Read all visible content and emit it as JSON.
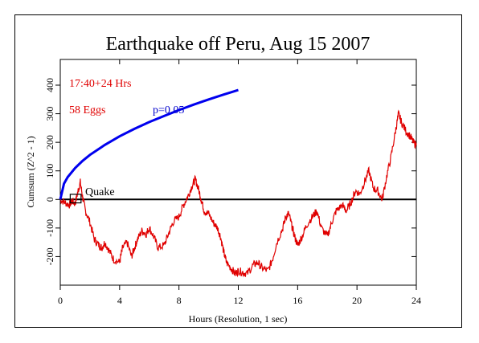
{
  "chart_data": {
    "type": "line",
    "title": "Earthquake off Peru, Aug 15 2007",
    "xlabel": "Hours (Resolution, 1 sec)",
    "ylabel": "Cumsum (Z^2 - 1)",
    "xlim": [
      0,
      24
    ],
    "ylim": [
      -300,
      490
    ],
    "x_ticks": [
      0,
      4,
      8,
      12,
      16,
      20,
      24
    ],
    "y_ticks": [
      -200,
      -100,
      0,
      100,
      200,
      300,
      400
    ],
    "grid": false,
    "annotations": {
      "time_window": "17:40+24 Hrs",
      "eggs": "58 Eggs",
      "probability": "p=0.05",
      "event_marker": "Quake",
      "event_window_hours": [
        0.67,
        1.4
      ]
    },
    "series": [
      {
        "color": "#e00000",
        "x": [
          0,
          0.3,
          0.6,
          0.8,
          1.0,
          1.2,
          1.35,
          1.5,
          1.7,
          2.0,
          2.3,
          2.6,
          2.8,
          3.0,
          3.3,
          3.6,
          4.0,
          4.2,
          4.5,
          4.8,
          5.0,
          5.2,
          5.5,
          5.8,
          6.0,
          6.3,
          6.6,
          7.0,
          7.3,
          7.6,
          8.0,
          8.3,
          8.6,
          8.9,
          9.1,
          9.3,
          9.5,
          9.7,
          10.0,
          10.3,
          10.6,
          10.8,
          11.0,
          11.2,
          11.5,
          11.8,
          12.0,
          12.3,
          12.6,
          13.0,
          13.3,
          13.6,
          14.0,
          14.3,
          14.6,
          15.0,
          15.2,
          15.4,
          15.6,
          15.8,
          16.0,
          16.3,
          16.6,
          17.0,
          17.3,
          17.6,
          18.0,
          18.3,
          18.6,
          19.0,
          19.3,
          19.6,
          19.9,
          20.2,
          20.5,
          20.8,
          21.1,
          21.4,
          21.7,
          22.0,
          22.3,
          22.6,
          22.8,
          23.0,
          23.3,
          23.6,
          23.8,
          24.0
        ],
        "values": [
          0,
          -10,
          -20,
          -5,
          -15,
          30,
          60,
          10,
          -40,
          -80,
          -140,
          -160,
          -170,
          -150,
          -180,
          -210,
          -220,
          -170,
          -150,
          -200,
          -170,
          -140,
          -110,
          -120,
          -100,
          -130,
          -170,
          -160,
          -120,
          -80,
          -60,
          -20,
          10,
          50,
          70,
          40,
          0,
          -40,
          -50,
          -80,
          -100,
          -130,
          -180,
          -220,
          -240,
          -260,
          -250,
          -255,
          -260,
          -230,
          -220,
          -240,
          -250,
          -210,
          -150,
          -100,
          -60,
          -50,
          -90,
          -130,
          -160,
          -130,
          -90,
          -60,
          -40,
          -100,
          -130,
          -80,
          -40,
          -20,
          -40,
          -10,
          30,
          20,
          60,
          100,
          40,
          30,
          0,
          80,
          150,
          240,
          300,
          270,
          240,
          220,
          200,
          190
        ]
      },
      {
        "color": "#0000ee",
        "x": [
          0,
          0.25,
          0.5,
          1,
          1.5,
          2,
          3,
          4,
          5,
          6,
          7,
          8,
          9,
          10,
          11,
          11.5,
          12
        ],
        "values": [
          0,
          55,
          78,
          110,
          135,
          156,
          191,
          221,
          247,
          271,
          292,
          313,
          332,
          350,
          367,
          375,
          383
        ]
      }
    ]
  }
}
